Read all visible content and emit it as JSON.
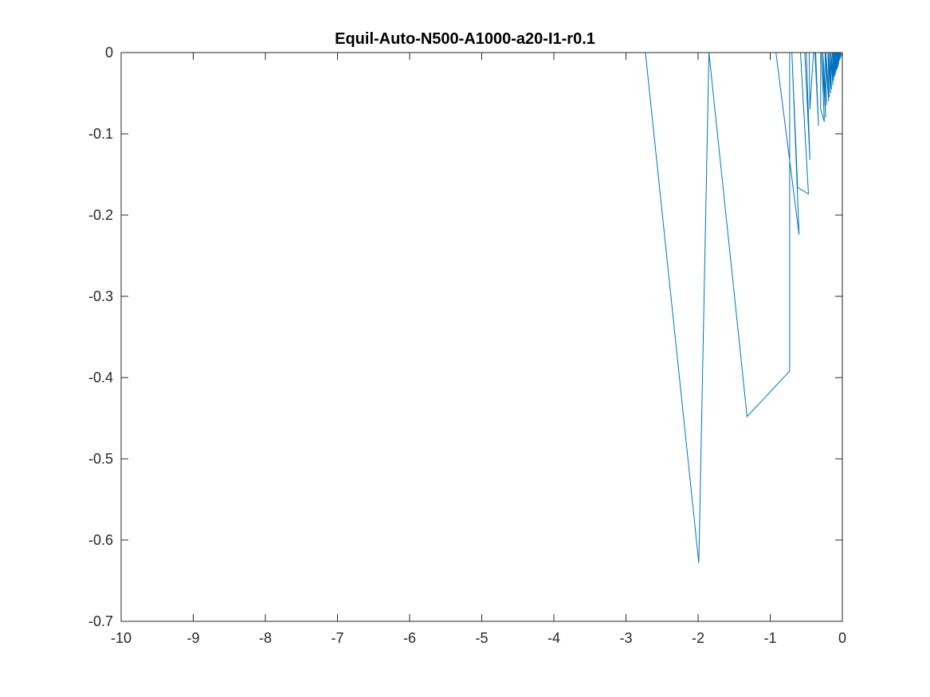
{
  "chart_data": {
    "type": "line",
    "title": "Equil-Auto-N500-A1000-a20-I1-r0.1",
    "xlabel": "",
    "ylabel": "",
    "xlim": [
      -10,
      0
    ],
    "ylim": [
      -0.7,
      0
    ],
    "xticks": [
      -10,
      -9,
      -8,
      -7,
      -6,
      -5,
      -4,
      -3,
      -2,
      -1,
      0
    ],
    "xtick_labels": [
      "-10",
      "-9",
      "-8",
      "-7",
      "-6",
      "-5",
      "-4",
      "-3",
      "-2",
      "-1",
      "0"
    ],
    "yticks": [
      0,
      -0.1,
      -0.2,
      -0.3,
      -0.4,
      -0.5,
      -0.6,
      -0.7
    ],
    "ytick_labels": [
      "0",
      "-0.1",
      "-0.2",
      "-0.3",
      "-0.4",
      "-0.5",
      "-0.6",
      "-0.7"
    ],
    "grid": false,
    "box": true,
    "line_color": "#0072BD",
    "series": [
      {
        "x": [
          -9.25,
          -2.73,
          -1.99,
          -1.85,
          -1.32,
          -0.73,
          -0.73,
          -1.2,
          -0.92,
          -0.6,
          -0.7,
          -0.62,
          -0.47,
          -0.58,
          -0.5,
          -0.45,
          -0.52,
          -0.46,
          -0.45,
          -0.4,
          -0.38,
          -0.33,
          -0.37,
          -0.3,
          -0.3,
          -0.25,
          -0.29,
          -0.23,
          -0.27,
          -0.22,
          -0.24,
          -0.19,
          -0.23,
          -0.18,
          -0.2,
          -0.16,
          -0.19,
          -0.15,
          -0.17,
          -0.13,
          -0.16,
          -0.12,
          -0.14,
          -0.11,
          -0.13,
          -0.1,
          -0.12,
          -0.09,
          -0.11,
          -0.08,
          -0.1,
          -0.07,
          -0.09,
          -0.06,
          -0.08,
          -0.05,
          -0.07,
          -0.05,
          -0.06,
          -0.04,
          -0.05,
          -0.03,
          -0.04,
          -0.02,
          -0.03,
          -0.01,
          0.0
        ],
        "y": [
          0.0,
          0.0,
          -0.628,
          0.0,
          -0.448,
          -0.392,
          0.0,
          0.0,
          0.0,
          -0.224,
          0.0,
          -0.166,
          -0.174,
          0.0,
          0.0,
          -0.132,
          0.0,
          0.0,
          -0.07,
          0.0,
          0.0,
          -0.09,
          0.0,
          0.0,
          -0.07,
          -0.085,
          0.0,
          -0.08,
          0.0,
          -0.065,
          0.0,
          -0.06,
          0.0,
          -0.055,
          0.0,
          -0.05,
          0.0,
          -0.045,
          0.0,
          -0.04,
          0.0,
          -0.035,
          0.0,
          -0.03,
          0.0,
          -0.028,
          0.0,
          -0.025,
          0.0,
          -0.022,
          0.0,
          -0.02,
          0.0,
          -0.018,
          0.0,
          -0.015,
          0.0,
          -0.012,
          0.0,
          -0.01,
          0.0,
          -0.008,
          0.0,
          -0.006,
          0.0,
          -0.003,
          0.0
        ]
      }
    ]
  }
}
